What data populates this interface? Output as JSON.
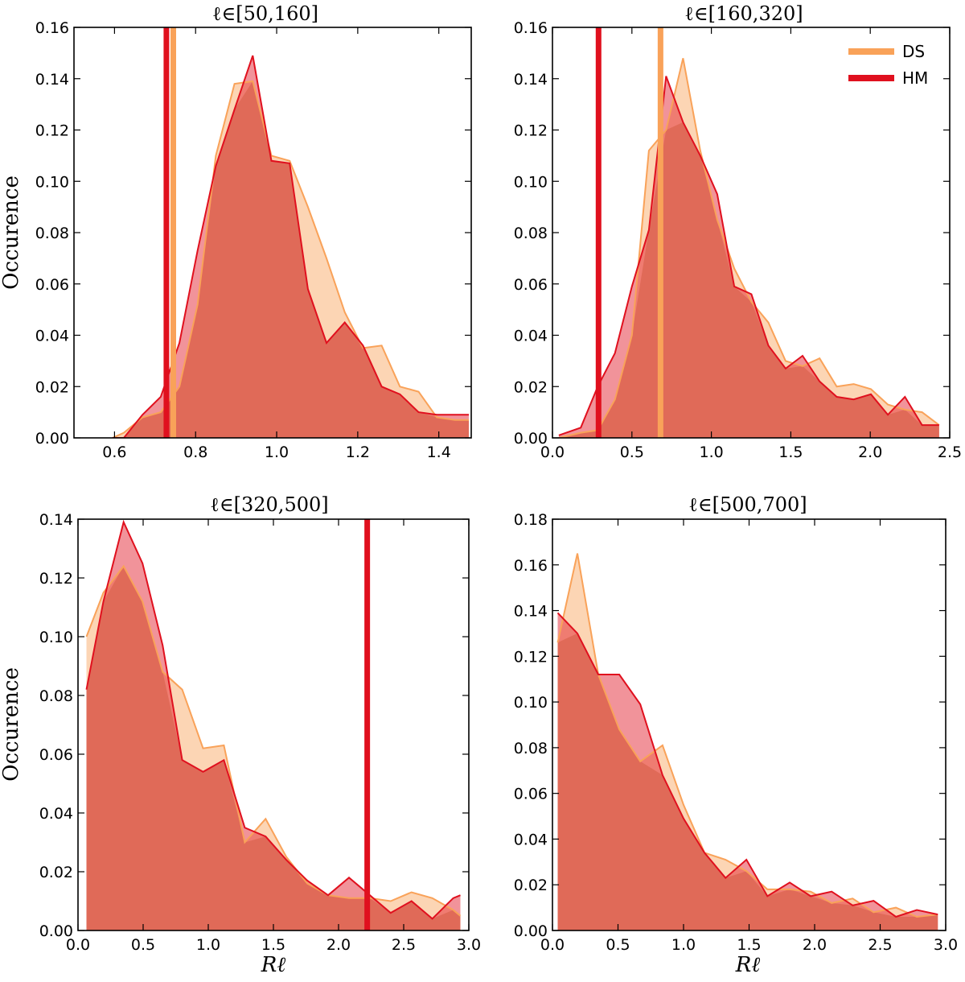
{
  "colors": {
    "DS": "#F9A259",
    "HM": "#E0101E",
    "overlap": "#E06A58"
  },
  "legend": {
    "placement": "top-right",
    "entries": [
      "DS",
      "HM"
    ]
  },
  "chart_data": [
    {
      "type": "area",
      "title": "ℓ∈[50,160]",
      "ylabel": "Occurence",
      "xlabel": "",
      "xlim": [
        0.5,
        1.48
      ],
      "ylim": [
        0,
        0.16
      ],
      "xticks": [
        "0.6",
        "0.8",
        "1.0",
        "1.2",
        "1.4"
      ],
      "yticks": [
        "0.00",
        "0.02",
        "0.04",
        "0.06",
        "0.08",
        "0.10",
        "0.12",
        "0.14",
        "0.16"
      ],
      "series": [
        {
          "name": "DS",
          "x": [
            0.595,
            0.623,
            0.669,
            0.714,
            0.76,
            0.805,
            0.85,
            0.896,
            0.941,
            0.987,
            1.032,
            1.077,
            1.123,
            1.168,
            1.213,
            1.259,
            1.304,
            1.35,
            1.395,
            1.44,
            1.474
          ],
          "y": [
            0.0,
            0.002,
            0.008,
            0.01,
            0.02,
            0.052,
            0.11,
            0.138,
            0.139,
            0.11,
            0.108,
            0.09,
            0.07,
            0.049,
            0.035,
            0.036,
            0.02,
            0.018,
            0.008,
            0.007,
            0.007
          ],
          "vline": 0.745
        },
        {
          "name": "HM",
          "x": [
            0.595,
            0.623,
            0.669,
            0.714,
            0.76,
            0.805,
            0.85,
            0.896,
            0.941,
            0.987,
            1.032,
            1.077,
            1.123,
            1.168,
            1.213,
            1.259,
            1.304,
            1.35,
            1.395,
            1.44,
            1.474
          ],
          "y": [
            0.0,
            0.0,
            0.009,
            0.016,
            0.037,
            0.073,
            0.106,
            0.128,
            0.149,
            0.108,
            0.107,
            0.058,
            0.037,
            0.045,
            0.036,
            0.02,
            0.017,
            0.01,
            0.009,
            0.009,
            0.009
          ],
          "vline": 0.728
        }
      ]
    },
    {
      "type": "area",
      "title": "ℓ∈[160,320]",
      "ylabel": "",
      "xlabel": "",
      "xlim": [
        0,
        2.5
      ],
      "ylim": [
        0,
        0.16
      ],
      "xticks": [
        "0.0",
        "0.5",
        "1.0",
        "1.5",
        "2.0",
        "2.5"
      ],
      "yticks": [
        "0.00",
        "0.02",
        "0.04",
        "0.06",
        "0.08",
        "0.10",
        "0.12",
        "0.14",
        "0.16"
      ],
      "series": [
        {
          "name": "DS",
          "x": [
            0.04,
            0.178,
            0.285,
            0.393,
            0.5,
            0.607,
            0.715,
            0.822,
            0.93,
            1.037,
            1.144,
            1.252,
            1.359,
            1.467,
            1.574,
            1.681,
            1.789,
            1.896,
            2.004,
            2.111,
            2.218,
            2.326,
            2.433
          ],
          "y": [
            0.0,
            0.002,
            0.003,
            0.015,
            0.04,
            0.112,
            0.12,
            0.148,
            0.112,
            0.085,
            0.066,
            0.053,
            0.045,
            0.03,
            0.028,
            0.031,
            0.02,
            0.021,
            0.019,
            0.013,
            0.011,
            0.01,
            0.005
          ],
          "vline": 0.68
        },
        {
          "name": "HM",
          "x": [
            0.04,
            0.178,
            0.285,
            0.393,
            0.5,
            0.607,
            0.715,
            0.822,
            0.93,
            1.037,
            1.144,
            1.252,
            1.359,
            1.467,
            1.574,
            1.681,
            1.789,
            1.896,
            2.004,
            2.111,
            2.218,
            2.326,
            2.433
          ],
          "y": [
            0.001,
            0.004,
            0.02,
            0.033,
            0.059,
            0.081,
            0.141,
            0.123,
            0.11,
            0.095,
            0.059,
            0.056,
            0.036,
            0.027,
            0.032,
            0.022,
            0.016,
            0.015,
            0.017,
            0.009,
            0.016,
            0.005,
            0.005
          ],
          "vline": 0.29
        }
      ]
    },
    {
      "type": "area",
      "title": "ℓ∈[320,500]",
      "ylabel": "Occurence",
      "xlabel": "Rℓ",
      "xlim": [
        0,
        3.0
      ],
      "ylim": [
        0,
        0.14
      ],
      "xticks": [
        "0.0",
        "0.5",
        "1.0",
        "1.5",
        "2.0",
        "2.5",
        "3.0"
      ],
      "yticks": [
        "0.00",
        "0.02",
        "0.04",
        "0.06",
        "0.08",
        "0.10",
        "0.12",
        "0.14"
      ],
      "series": [
        {
          "name": "DS",
          "x": [
            0.065,
            0.195,
            0.35,
            0.495,
            0.65,
            0.8,
            0.96,
            1.12,
            1.28,
            1.44,
            1.6,
            1.76,
            1.92,
            2.08,
            2.24,
            2.4,
            2.56,
            2.72,
            2.88,
            2.935
          ],
          "y": [
            0.1,
            0.115,
            0.124,
            0.112,
            0.088,
            0.082,
            0.062,
            0.063,
            0.03,
            0.038,
            0.025,
            0.016,
            0.012,
            0.011,
            0.011,
            0.01,
            0.013,
            0.011,
            0.007,
            0.005
          ],
          "vline": null
        },
        {
          "name": "HM",
          "x": [
            0.065,
            0.195,
            0.35,
            0.495,
            0.65,
            0.8,
            0.96,
            1.12,
            1.28,
            1.44,
            1.6,
            1.76,
            1.92,
            2.08,
            2.24,
            2.4,
            2.56,
            2.72,
            2.88,
            2.935
          ],
          "y": [
            0.082,
            0.112,
            0.139,
            0.125,
            0.097,
            0.058,
            0.054,
            0.058,
            0.035,
            0.032,
            0.024,
            0.017,
            0.012,
            0.018,
            0.012,
            0.006,
            0.01,
            0.004,
            0.011,
            0.012
          ],
          "vline": 2.22
        }
      ]
    },
    {
      "type": "area",
      "title": "ℓ∈[500,700]",
      "ylabel": "",
      "xlabel": "Rℓ",
      "xlim": [
        0,
        3.0
      ],
      "ylim": [
        0,
        0.18
      ],
      "xticks": [
        "0.0",
        "0.5",
        "1.0",
        "1.5",
        "2.0",
        "2.5",
        "3.0"
      ],
      "yticks": [
        "0.00",
        "0.02",
        "0.04",
        "0.06",
        "0.08",
        "0.10",
        "0.12",
        "0.14",
        "0.16",
        "0.18"
      ],
      "series": [
        {
          "name": "DS",
          "x": [
            0.04,
            0.19,
            0.35,
            0.51,
            0.67,
            0.84,
            1.0,
            1.16,
            1.32,
            1.48,
            1.64,
            1.81,
            1.97,
            2.13,
            2.29,
            2.45,
            2.62,
            2.78,
            2.94
          ],
          "y": [
            0.126,
            0.165,
            0.112,
            0.088,
            0.074,
            0.081,
            0.055,
            0.034,
            0.031,
            0.026,
            0.018,
            0.018,
            0.017,
            0.012,
            0.014,
            0.008,
            0.01,
            0.006,
            0.007
          ],
          "vline": null
        },
        {
          "name": "HM",
          "x": [
            0.04,
            0.19,
            0.35,
            0.51,
            0.67,
            0.84,
            1.0,
            1.16,
            1.32,
            1.48,
            1.64,
            1.81,
            1.97,
            2.13,
            2.29,
            2.45,
            2.62,
            2.78,
            2.94
          ],
          "y": [
            0.139,
            0.13,
            0.112,
            0.112,
            0.099,
            0.068,
            0.049,
            0.034,
            0.023,
            0.031,
            0.015,
            0.021,
            0.015,
            0.017,
            0.011,
            0.013,
            0.006,
            0.009,
            0.007
          ],
          "vline": null
        }
      ]
    }
  ]
}
